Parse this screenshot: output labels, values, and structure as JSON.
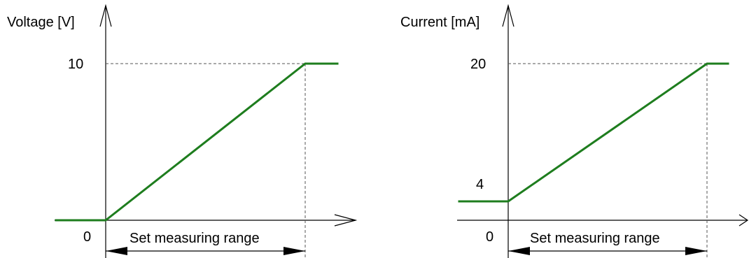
{
  "diagram_left": {
    "y_axis_label": "Voltage [V]",
    "y_max_label": "10",
    "origin_label": "0",
    "range_label": "Set measuring range"
  },
  "diagram_right": {
    "y_axis_label": "Current [mA]",
    "y_max_label": "20",
    "y_min_label": "4",
    "origin_label": "0",
    "range_label": "Set measuring range"
  },
  "colors": {
    "curve": "#1e7d1e",
    "axis": "#000000",
    "dashed": "#555555"
  }
}
